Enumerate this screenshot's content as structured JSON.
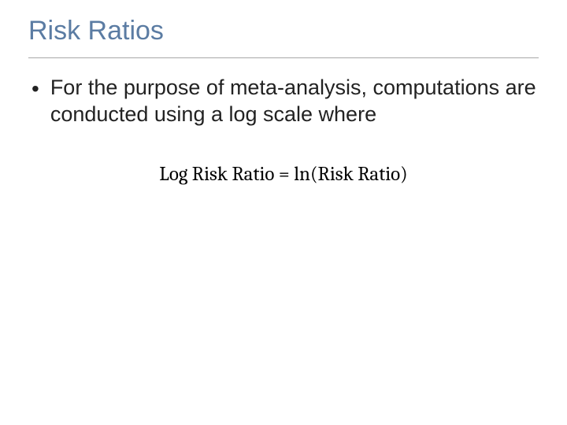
{
  "slide": {
    "title": "Risk Ratios",
    "bullet_symbol": "•",
    "bullet_text": "For the purpose of meta-analysis, computations are conducted using a log scale where",
    "equation": "Log Risk Ratio = ln(Risk Ratio)"
  },
  "styling": {
    "title_color": "#5b7ca3",
    "title_fontsize": 34,
    "body_fontsize": 27,
    "body_color": "#222222",
    "equation_fontsize": 25,
    "equation_color": "#000000",
    "underline_color": "#a8a8a8",
    "background_color": "#ffffff",
    "title_font": "Verdana",
    "body_font": "Verdana",
    "equation_font": "Cambria"
  }
}
